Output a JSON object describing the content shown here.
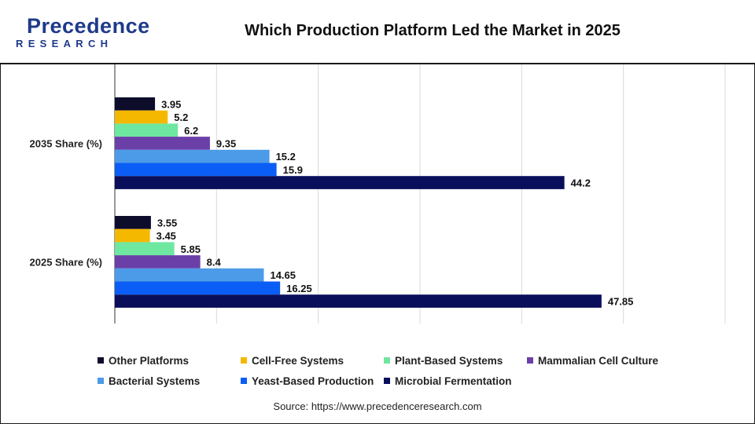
{
  "header": {
    "logo_main": "Precedence",
    "logo_sub": "RESEARCH",
    "title": "Which Production Platform Led the Market in 2025"
  },
  "chart_data": {
    "type": "bar",
    "orientation": "horizontal",
    "categories": [
      "2035 Share (%)",
      "2025 Share (%)"
    ],
    "series": [
      {
        "name": "Other Platforms",
        "color": "#0d0d2b",
        "values": [
          3.95,
          3.55
        ],
        "labels": [
          "3.95",
          "3.55"
        ]
      },
      {
        "name": "Cell-Free Systems",
        "color": "#f5b800",
        "values": [
          5.2,
          3.45
        ],
        "labels": [
          "5.2",
          "3.45"
        ]
      },
      {
        "name": "Plant-Based Systems",
        "color": "#6ee7a0",
        "values": [
          6.2,
          5.85
        ],
        "labels": [
          "6.2",
          "5.85"
        ]
      },
      {
        "name": "Mammalian Cell Culture",
        "color": "#6b3fa8",
        "values": [
          9.35,
          8.4
        ],
        "labels": [
          "9.35",
          "8.4"
        ]
      },
      {
        "name": "Bacterial Systems",
        "color": "#4c9be8",
        "values": [
          15.2,
          14.65
        ],
        "labels": [
          "15.2",
          "14.65"
        ]
      },
      {
        "name": "Yeast-Based Production",
        "color": "#0b5ef5",
        "values": [
          15.9,
          16.25
        ],
        "labels": [
          "15.9",
          "16.25"
        ]
      },
      {
        "name": "Microbial Fermentation",
        "color": "#0a0f5c",
        "values": [
          44.2,
          47.85
        ],
        "labels": [
          "44.2",
          "47.85"
        ]
      }
    ],
    "xlim": [
      0,
      60
    ],
    "xticks": [
      "0",
      "10",
      "20",
      "30",
      "40",
      "50",
      "60"
    ],
    "grid": true,
    "legend_position": "bottom"
  },
  "footer": {
    "source": "Source: https://www.precedenceresearch.com"
  }
}
